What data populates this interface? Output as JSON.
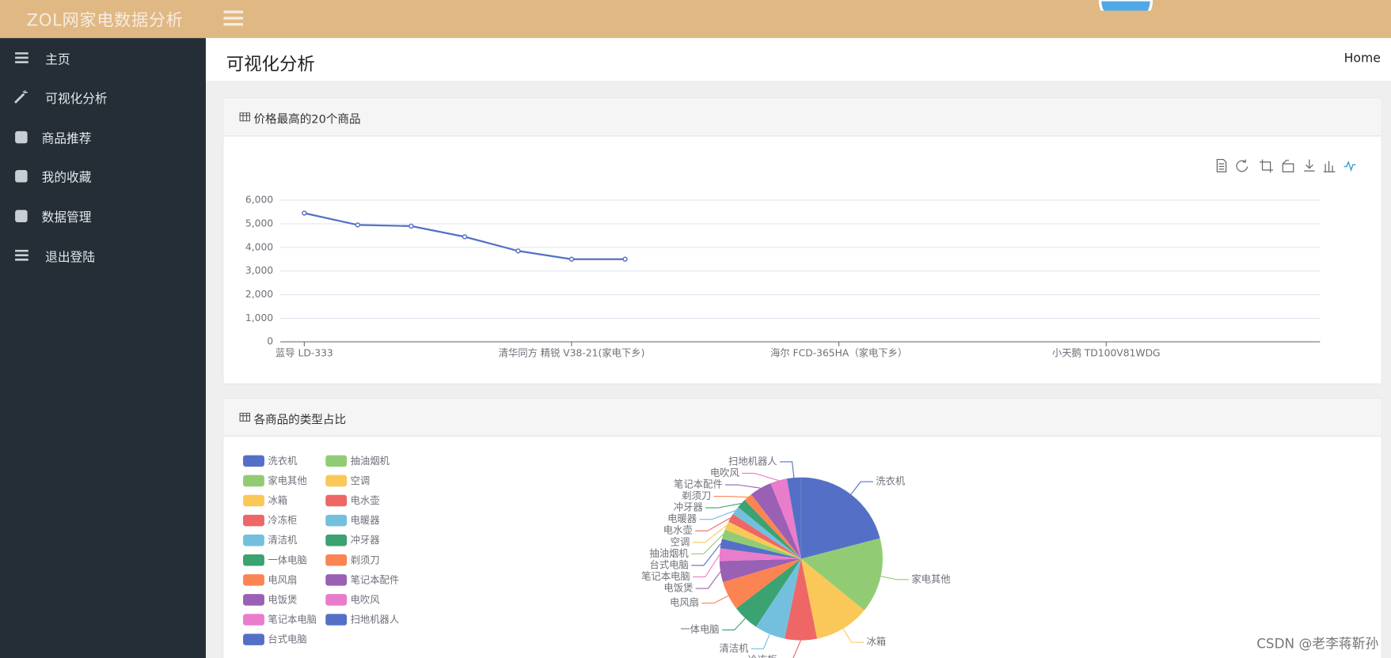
{
  "header": {
    "brand": "ZOL网家电数据分析"
  },
  "sidebar": [
    "主页",
    "可视化分析",
    "商品推荐",
    "我的收藏",
    "数据管理",
    "退出登陆"
  ],
  "page": {
    "title": "可视化分析",
    "breadcrumb": "Home"
  },
  "panels": [
    "价格最高的20个商品",
    "各商品的类型占比"
  ],
  "chart_data": [
    {
      "type": "line",
      "categories": [
        "蓝导 LD-333",
        null,
        null,
        null,
        null,
        "清华同方 精锐 V38-21(家电下乡)",
        null,
        null,
        null,
        null,
        "海尔 FCD-365HA（家电下乡）",
        null,
        null,
        null,
        null,
        "小天鹅 TD100V81WDG",
        null,
        null,
        null,
        null
      ],
      "series": [
        {
          "name": null,
          "color": "#5470c6",
          "values": [
            5450,
            4950,
            4900,
            4450,
            3850,
            3500,
            3500,
            null,
            null,
            null,
            null,
            null,
            null,
            null,
            null,
            null,
            null,
            null,
            null,
            null
          ]
        }
      ],
      "ylim": [
        0,
        6000
      ],
      "yticks": [
        0,
        {
          "value": 1000,
          "label": "1,000"
        },
        {
          "value": 2000,
          "label": "2,000"
        },
        {
          "value": 3000,
          "label": "3,000"
        },
        {
          "value": 4000,
          "label": "4,000"
        },
        {
          "value": 5000,
          "label": "5,000"
        },
        {
          "value": 6000,
          "label": "6,000"
        }
      ],
      "grid": true
    },
    {
      "type": "pie",
      "categories": [
        "洗衣机",
        "家电其他",
        "冰箱",
        "冷冻柜",
        "清洁机",
        "一体电脑",
        "电风扇",
        "电饭煲",
        "笔记本电脑",
        "台式电脑",
        "抽油烟机",
        "空调",
        "电水壶",
        "电暖器",
        "冲牙器",
        "剃须刀",
        "笔记本配件",
        "电吹风",
        "扫地机器人"
      ],
      "values": [
        21,
        15,
        11,
        6.4,
        6.1,
        5.3,
        5.8,
        4.2,
        2.5,
        1.9,
        1.9,
        1.7,
        1.7,
        1.7,
        1.9,
        1.7,
        4.4,
        3.3,
        2.8
      ],
      "colors": [
        "#5470c6",
        "#91cc75",
        "#fac858",
        "#ee6666",
        "#73c0de",
        "#3ba272",
        "#fc8452",
        "#9a60b4",
        "#ea7ccc",
        "#5470c6",
        "#91cc75",
        "#fac858",
        "#ee6666",
        "#73c0de",
        "#3ba272",
        "#fc8452",
        "#9a60b4",
        "#ea7ccc",
        "#5470c6"
      ],
      "legend": "left"
    }
  ],
  "watermark": "CSDN @老李蒋靳孙"
}
